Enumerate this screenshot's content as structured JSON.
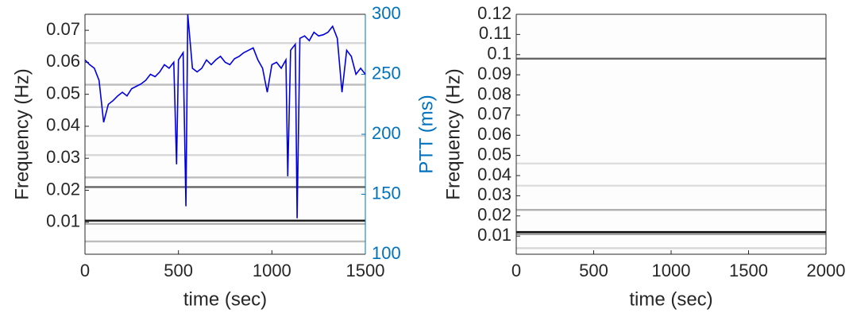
{
  "chart_data": [
    {
      "type": "spectrogram",
      "xlabel": "time (sec)",
      "ylabel": "Frequency (Hz)",
      "y2label": "PTT (ms)",
      "xlim": [
        0,
        1500
      ],
      "xticks": [
        0,
        500,
        1000,
        1500
      ],
      "ylim": [
        0,
        0.075
      ],
      "yticks": [
        0.01,
        0.02,
        0.03,
        0.04,
        0.05,
        0.06,
        0.07
      ],
      "y2lim": [
        100,
        300
      ],
      "y2ticks": [
        100,
        150,
        200,
        250,
        300
      ],
      "y2color": "#0072bd",
      "bands": [
        {
          "frequency": 0.0105,
          "intensity": 0.9
        },
        {
          "frequency": 0.0095,
          "intensity": 0.3
        },
        {
          "frequency": 0.021,
          "intensity": 0.6
        },
        {
          "frequency": 0.024,
          "intensity": 0.25
        },
        {
          "frequency": 0.031,
          "intensity": 0.15
        },
        {
          "frequency": 0.037,
          "intensity": 0.15
        },
        {
          "frequency": 0.046,
          "intensity": 0.2
        },
        {
          "frequency": 0.053,
          "intensity": 0.25
        },
        {
          "frequency": 0.066,
          "intensity": 0.15
        },
        {
          "frequency": 0.004,
          "intensity": 0.25
        }
      ],
      "x": [
        0,
        25,
        50,
        75,
        100,
        125,
        150,
        175,
        200,
        225,
        250,
        275,
        300,
        325,
        350,
        375,
        400,
        425,
        450,
        475,
        490,
        500,
        525,
        540,
        550,
        575,
        600,
        625,
        650,
        675,
        700,
        725,
        750,
        775,
        800,
        825,
        850,
        875,
        900,
        925,
        950,
        975,
        1000,
        1025,
        1050,
        1075,
        1085,
        1100,
        1125,
        1135,
        1150,
        1175,
        1200,
        1225,
        1250,
        1275,
        1300,
        1325,
        1350,
        1375,
        1400,
        1425,
        1450,
        1475,
        1500
      ],
      "series": [
        {
          "color": "#0000e0",
          "axis": "y2",
          "values": [
            262,
            258,
            255,
            245,
            210,
            225,
            228,
            232,
            235,
            232,
            238,
            240,
            242,
            245,
            250,
            248,
            252,
            258,
            255,
            260,
            175,
            262,
            268,
            140,
            300,
            255,
            252,
            255,
            262,
            258,
            262,
            265,
            260,
            258,
            263,
            265,
            268,
            270,
            272,
            262,
            255,
            235,
            258,
            260,
            255,
            262,
            165,
            270,
            275,
            130,
            280,
            282,
            278,
            285,
            282,
            283,
            285,
            290,
            280,
            235,
            270,
            265,
            250,
            255,
            250
          ]
        }
      ]
    },
    {
      "type": "spectrogram",
      "xlabel": "time (sec)",
      "ylabel": "Frequency (Hz)",
      "xlim": [
        0,
        2000
      ],
      "xticks": [
        0,
        500,
        1000,
        1500,
        2000
      ],
      "ylim": [
        0.001,
        0.12
      ],
      "yticks": [
        0.01,
        0.02,
        0.03,
        0.04,
        0.05,
        0.06,
        0.07,
        0.08,
        0.09,
        0.1,
        0.11,
        0.12
      ],
      "bands": [
        {
          "frequency": 0.012,
          "intensity": 0.95
        },
        {
          "frequency": 0.011,
          "intensity": 0.4
        },
        {
          "frequency": 0.023,
          "intensity": 0.3
        },
        {
          "frequency": 0.098,
          "intensity": 0.6
        },
        {
          "frequency": 0.046,
          "intensity": 0.12
        },
        {
          "frequency": 0.035,
          "intensity": 0.12
        },
        {
          "frequency": 0.004,
          "intensity": 0.15
        }
      ]
    }
  ]
}
